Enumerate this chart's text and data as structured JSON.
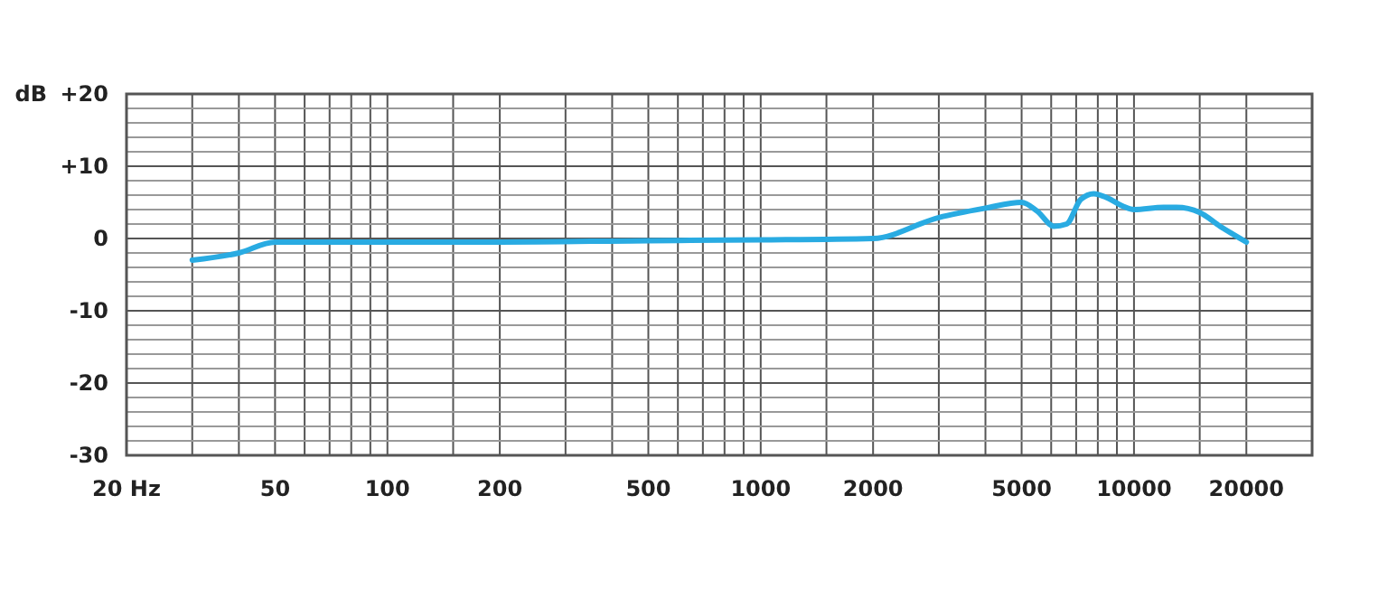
{
  "chart_data": {
    "type": "line",
    "ylabel": "dB",
    "log": "x",
    "grid": true,
    "marker": "none",
    "line_style": "solid",
    "xlim": [
      20,
      30000
    ],
    "ylim": [
      -30,
      20
    ],
    "xticks": [
      {
        "value": 20,
        "label": "20 Hz"
      },
      {
        "value": 30,
        "label": null
      },
      {
        "value": 40,
        "label": null
      },
      50,
      {
        "value": 60,
        "label": null
      },
      {
        "value": 70,
        "label": null
      },
      {
        "value": 80,
        "label": null
      },
      {
        "value": 90,
        "label": null
      },
      100,
      {
        "value": 150,
        "label": null
      },
      200,
      {
        "value": 300,
        "label": null
      },
      {
        "value": 400,
        "label": null
      },
      500,
      {
        "value": 600,
        "label": null
      },
      {
        "value": 700,
        "label": null
      },
      {
        "value": 800,
        "label": null
      },
      {
        "value": 900,
        "label": null
      },
      1000,
      {
        "value": 1500,
        "label": null
      },
      2000,
      {
        "value": 3000,
        "label": null
      },
      {
        "value": 4000,
        "label": null
      },
      5000,
      {
        "value": 6000,
        "label": null
      },
      {
        "value": 7000,
        "label": null
      },
      {
        "value": 8000,
        "label": null
      },
      {
        "value": 9000,
        "label": null
      },
      10000,
      {
        "value": 15000,
        "label": null
      },
      20000
    ],
    "yticks": [
      -30,
      {
        "value": -28,
        "label": null
      },
      {
        "value": -26,
        "label": null
      },
      {
        "value": -24,
        "label": null
      },
      {
        "value": -22,
        "label": null
      },
      -20,
      {
        "value": -18,
        "label": null
      },
      {
        "value": -16,
        "label": null
      },
      {
        "value": -14,
        "label": null
      },
      {
        "value": -12,
        "label": null
      },
      -10,
      {
        "value": -8,
        "label": null
      },
      {
        "value": -6,
        "label": null
      },
      {
        "value": -4,
        "label": null
      },
      {
        "value": -2,
        "label": null
      },
      0,
      {
        "value": 2,
        "label": null
      },
      {
        "value": 4,
        "label": null
      },
      {
        "value": 6,
        "label": null
      },
      {
        "value": 8,
        "label": null
      },
      {
        "value": 10,
        "label": "+10"
      },
      {
        "value": 12,
        "label": null
      },
      {
        "value": 14,
        "label": null
      },
      {
        "value": 16,
        "label": null
      },
      {
        "value": 18,
        "label": null
      },
      {
        "value": 20,
        "label": "+20"
      }
    ],
    "series": [
      {
        "color": "#29abe2",
        "x": [
          30,
          40,
          50,
          100,
          200,
          500,
          1000,
          2000,
          3000,
          4000,
          5000,
          5500,
          6100,
          6600,
          7200,
          7800,
          8500,
          9400,
          10000,
          12000,
          13000,
          15000,
          17000,
          20000
        ],
        "values": [
          -3,
          -2,
          -0.5,
          -0.5,
          -0.5,
          -0.3,
          -0.2,
          0,
          2.9,
          4.2,
          5,
          3.8,
          1.7,
          2,
          5.4,
          6.2,
          5.6,
          4.4,
          4,
          4.3,
          4.3,
          3.6,
          1.7,
          -0.5
        ]
      }
    ]
  }
}
